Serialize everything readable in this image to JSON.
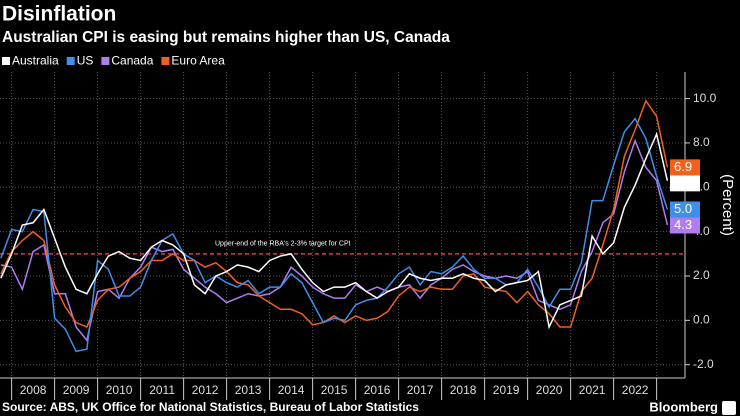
{
  "chart_data": {
    "type": "line",
    "title": "Disinflation",
    "subtitle": "Australian CPI is easing but remains higher than US, Canada",
    "y_label": "(Percent)",
    "source": "Source: ABS, UK Office for National Statistics, Bureau of Labor Statistics",
    "brand": "Bloomberg",
    "reference_line": {
      "value": 3,
      "label": "Upper-end of the RBA's 2-3% target for CPI",
      "color": "#e8304a"
    },
    "x": [
      2007.75,
      2008,
      2008.25,
      2008.5,
      2008.75,
      2009,
      2009.25,
      2009.5,
      2009.75,
      2010,
      2010.25,
      2010.5,
      2010.75,
      2011,
      2011.25,
      2011.5,
      2011.75,
      2012,
      2012.25,
      2012.5,
      2012.75,
      2013,
      2013.25,
      2013.5,
      2013.75,
      2014,
      2014.25,
      2014.5,
      2014.75,
      2015,
      2015.25,
      2015.5,
      2015.75,
      2016,
      2016.25,
      2016.5,
      2016.75,
      2017,
      2017.25,
      2017.5,
      2017.75,
      2018,
      2018.25,
      2018.5,
      2018.75,
      2019,
      2019.25,
      2019.5,
      2019.75,
      2020,
      2020.25,
      2020.5,
      2020.75,
      2021,
      2021.25,
      2021.5,
      2021.75,
      2022,
      2022.25,
      2022.5,
      2022.75,
      2023,
      2023.25
    ],
    "xlim": [
      2007.73,
      2023.66
    ],
    "xticks": [
      {
        "value": 2008.5,
        "label": "2008"
      },
      {
        "value": 2009.5,
        "label": "2009"
      },
      {
        "value": 2010.5,
        "label": "2010"
      },
      {
        "value": 2011.5,
        "label": "2011"
      },
      {
        "value": 2012.5,
        "label": "2012"
      },
      {
        "value": 2013.5,
        "label": "2013"
      },
      {
        "value": 2014.5,
        "label": "2014"
      },
      {
        "value": 2015.5,
        "label": "2015"
      },
      {
        "value": 2016.5,
        "label": "2016"
      },
      {
        "value": 2017.5,
        "label": "2017"
      },
      {
        "value": 2018.5,
        "label": "2018"
      },
      {
        "value": 2019.5,
        "label": "2019"
      },
      {
        "value": 2020.5,
        "label": "2020"
      },
      {
        "value": 2021.5,
        "label": "2021"
      },
      {
        "value": 2022.5,
        "label": "2022"
      }
    ],
    "ylim": [
      -2.6,
      11.2
    ],
    "yticks": [
      {
        "value": -2,
        "label": "-2.0"
      },
      {
        "value": 0,
        "label": "0.0"
      },
      {
        "value": 2,
        "label": "2.0"
      },
      {
        "value": 4,
        "label": "4.0"
      },
      {
        "value": 6,
        "label": "6.0"
      },
      {
        "value": 8,
        "label": "8.0"
      },
      {
        "value": 10,
        "label": "10.0"
      }
    ],
    "grid": true,
    "series": [
      {
        "name": "Australia",
        "color": "#ffffff",
        "end_label": "6.3",
        "values": [
          1.9,
          3.0,
          4.3,
          4.4,
          5.0,
          3.7,
          2.4,
          1.4,
          1.2,
          2.1,
          2.9,
          3.1,
          2.8,
          2.7,
          3.3,
          3.6,
          3.4,
          3.0,
          1.6,
          1.2,
          2.0,
          2.2,
          2.5,
          2.4,
          2.2,
          2.7,
          2.9,
          3.0,
          2.3,
          1.7,
          1.3,
          1.5,
          1.5,
          1.7,
          1.3,
          1.0,
          1.3,
          1.5,
          2.1,
          1.9,
          1.8,
          1.9,
          1.9,
          2.1,
          1.9,
          1.8,
          1.3,
          1.6,
          1.7,
          1.8,
          2.2,
          -0.3,
          0.7,
          0.9,
          1.1,
          3.8,
          3.0,
          3.5,
          5.1,
          6.1,
          7.3,
          8.4,
          6.3
        ]
      },
      {
        "name": "US",
        "color": "#3f8ee8",
        "end_label": "5.0",
        "values": [
          2.8,
          4.1,
          4.0,
          5.0,
          4.9,
          0.1,
          -0.4,
          -1.4,
          -1.3,
          2.7,
          2.3,
          1.1,
          1.1,
          1.5,
          2.7,
          3.6,
          3.9,
          3.0,
          2.7,
          1.7,
          2.0,
          1.7,
          1.5,
          1.8,
          1.2,
          1.5,
          1.5,
          2.1,
          1.7,
          0.8,
          -0.1,
          0.1,
          0.0,
          0.7,
          0.9,
          1.0,
          1.5,
          2.1,
          2.4,
          1.6,
          2.2,
          2.1,
          2.4,
          2.9,
          2.3,
          1.9,
          1.9,
          1.6,
          1.7,
          2.3,
          1.5,
          0.6,
          1.4,
          1.4,
          2.6,
          5.4,
          5.4,
          7.0,
          8.5,
          9.1,
          8.2,
          6.5,
          5.0
        ]
      },
      {
        "name": "Canada",
        "color": "#b07cf0",
        "end_label": "4.3",
        "values": [
          2.5,
          2.4,
          1.4,
          3.1,
          3.4,
          1.2,
          1.2,
          -0.3,
          -0.9,
          1.3,
          1.4,
          1.0,
          1.9,
          2.4,
          3.3,
          3.1,
          3.2,
          2.3,
          1.9,
          1.5,
          1.2,
          0.8,
          1.0,
          1.2,
          1.1,
          1.2,
          1.5,
          2.4,
          2.0,
          1.5,
          1.2,
          1.0,
          1.0,
          1.6,
          1.3,
          1.5,
          1.3,
          1.5,
          1.6,
          1.0,
          1.6,
          1.9,
          2.3,
          2.5,
          2.2,
          2.0,
          1.9,
          2.0,
          1.9,
          2.2,
          0.9,
          0.7,
          0.5,
          0.7,
          2.2,
          3.1,
          4.4,
          4.8,
          6.7,
          8.1,
          6.9,
          6.3,
          4.3
        ]
      },
      {
        "name": "Euro Area",
        "color": "#f2601c",
        "end_label": "6.9",
        "values": [
          2.1,
          3.1,
          3.6,
          4.0,
          3.6,
          1.6,
          0.6,
          -0.1,
          -0.3,
          0.9,
          1.4,
          1.5,
          1.9,
          2.2,
          2.7,
          2.7,
          3.0,
          2.7,
          2.7,
          2.4,
          2.6,
          2.2,
          1.7,
          1.6,
          1.1,
          0.8,
          0.5,
          0.5,
          0.3,
          -0.2,
          -0.1,
          0.2,
          -0.1,
          0.2,
          0.0,
          0.1,
          0.4,
          1.1,
          1.5,
          1.3,
          1.5,
          1.4,
          1.4,
          2.0,
          2.1,
          1.5,
          1.4,
          1.3,
          0.8,
          1.3,
          0.7,
          0.3,
          -0.3,
          -0.3,
          1.3,
          1.9,
          3.4,
          5.0,
          7.4,
          8.6,
          9.9,
          9.2,
          6.9
        ]
      }
    ]
  }
}
